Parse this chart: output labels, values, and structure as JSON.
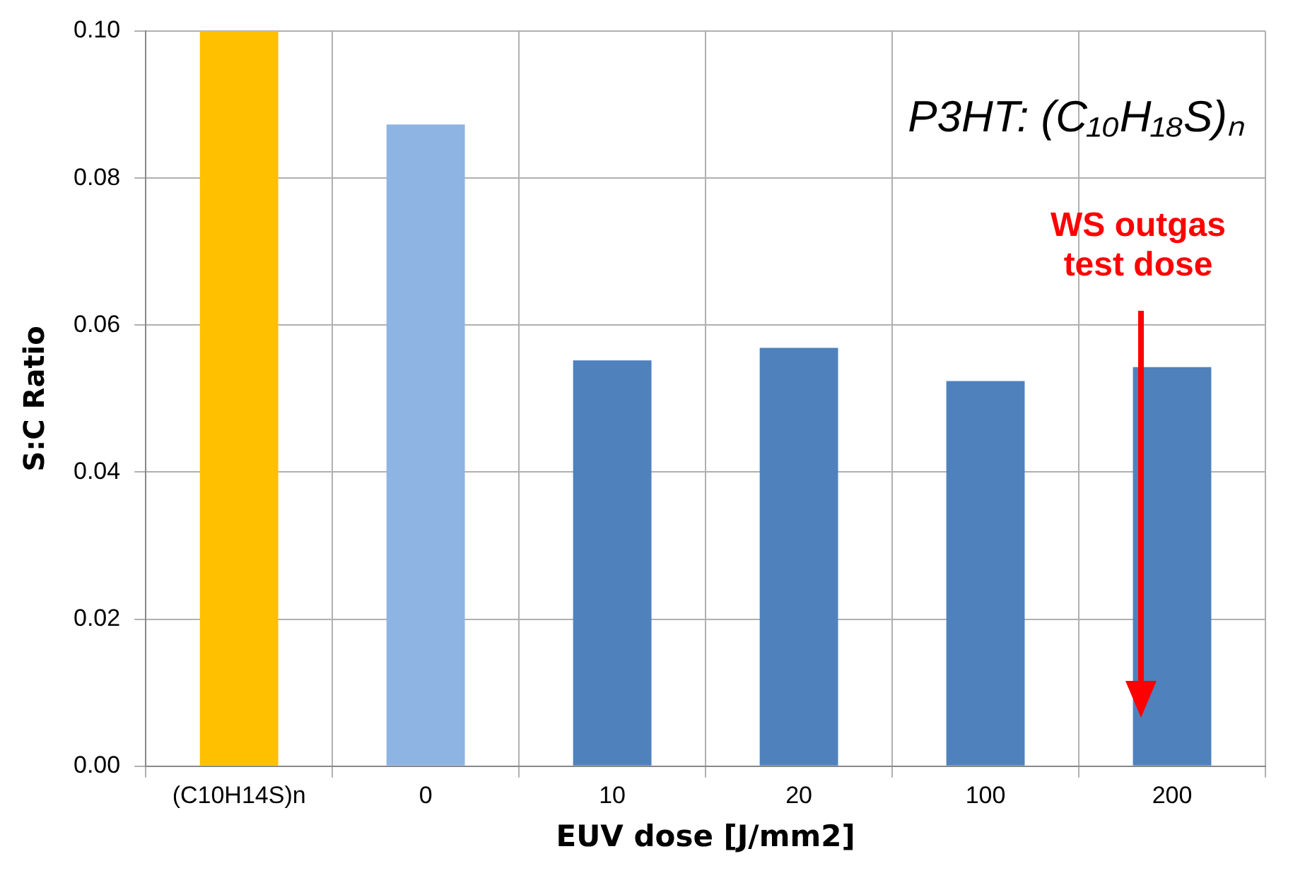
{
  "chart_data": {
    "type": "bar",
    "xlabel": "EUV dose [J/mm2]",
    "ylabel": "S:C Ratio",
    "categories": [
      "(C10H14S)n",
      "0",
      "10",
      "20",
      "100",
      "200"
    ],
    "values": [
      0.1,
      0.0873,
      0.0552,
      0.0569,
      0.0524,
      0.0543
    ],
    "colors": [
      "#ffc000",
      "#8eb4e3",
      "#4f81bd",
      "#4f81bd",
      "#4f81bd",
      "#4f81bd"
    ],
    "ylim": [
      0,
      0.1
    ],
    "yticks": [
      {
        "value": 0,
        "label": "0.00"
      },
      {
        "value": 0.02,
        "label": "0.02"
      },
      {
        "value": 0.04,
        "label": "0.04"
      },
      {
        "value": 0.06,
        "label": "0.06"
      },
      {
        "value": 0.08,
        "label": "0.08"
      },
      {
        "value": 0.1,
        "label": "0.10"
      }
    ],
    "grid": true,
    "annotations": [
      "P3HT:  (C₁₀H₁₈S)ₙ",
      "WS outgas test dose"
    ]
  }
}
